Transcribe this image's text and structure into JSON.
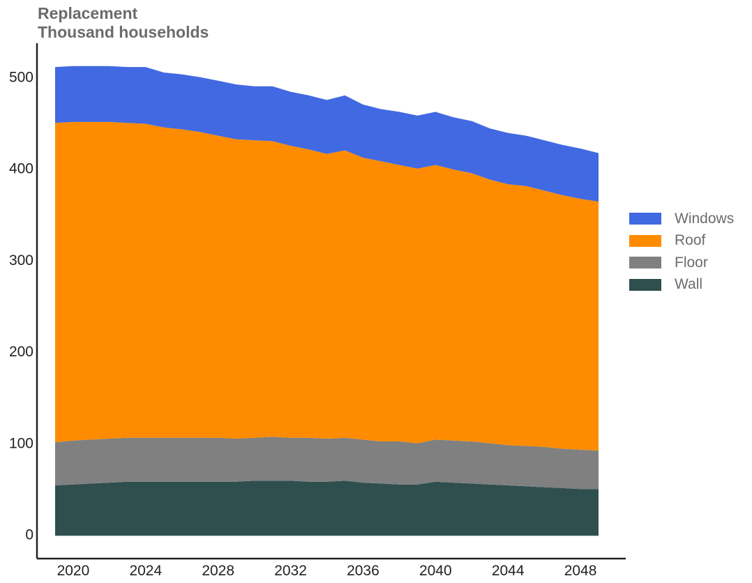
{
  "title_line1": "Replacement",
  "title_line2": "Thousand households",
  "chart_data": {
    "type": "area",
    "stacked": true,
    "title": "Replacement",
    "ylabel": "Thousand households",
    "xlim": [
      2018,
      2050.5
    ],
    "ylim": [
      -25,
      538
    ],
    "x_ticks": [
      2020,
      2024,
      2028,
      2032,
      2036,
      2040,
      2044,
      2048
    ],
    "y_ticks": [
      0,
      100,
      200,
      300,
      400,
      500
    ],
    "x": [
      2019,
      2020,
      2021,
      2022,
      2023,
      2024,
      2025,
      2026,
      2027,
      2028,
      2029,
      2030,
      2031,
      2032,
      2033,
      2034,
      2035,
      2036,
      2037,
      2038,
      2039,
      2040,
      2041,
      2042,
      2043,
      2044,
      2045,
      2046,
      2047,
      2048,
      2049
    ],
    "series": [
      {
        "name": "Wall",
        "color": "#2f4f4f",
        "values": [
          55,
          56,
          57,
          58,
          59,
          59,
          59,
          59,
          59,
          59,
          59,
          60,
          60,
          60,
          59,
          59,
          60,
          58,
          57,
          56,
          56,
          59,
          58,
          57,
          56,
          55,
          54,
          53,
          52,
          51,
          51
        ]
      },
      {
        "name": "Floor",
        "color": "#808080",
        "values": [
          47,
          48,
          48,
          48,
          48,
          48,
          48,
          48,
          48,
          48,
          47,
          47,
          48,
          47,
          48,
          47,
          47,
          47,
          46,
          47,
          45,
          46,
          46,
          46,
          45,
          44,
          44,
          44,
          43,
          43,
          42
        ]
      },
      {
        "name": "Roof",
        "color": "#ff8c00",
        "values": [
          349,
          348,
          347,
          346,
          344,
          343,
          339,
          337,
          334,
          330,
          327,
          325,
          323,
          319,
          315,
          311,
          314,
          308,
          306,
          302,
          300,
          300,
          296,
          293,
          288,
          285,
          284,
          280,
          277,
          274,
          272
        ]
      },
      {
        "name": "Windows",
        "color": "#4169e1",
        "values": [
          61,
          61,
          61,
          61,
          61,
          62,
          60,
          60,
          60,
          60,
          60,
          59,
          60,
          59,
          59,
          59,
          60,
          58,
          57,
          58,
          58,
          58,
          57,
          57,
          56,
          56,
          55,
          55,
          55,
          55,
          53
        ]
      }
    ],
    "legend_position": "right",
    "grid": false
  }
}
